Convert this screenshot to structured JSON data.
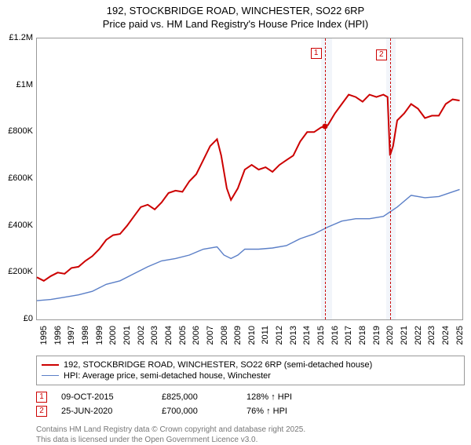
{
  "title_line1": "192, STOCKBRIDGE ROAD, WINCHESTER, SO22 6RP",
  "title_line2": "Price paid vs. HM Land Registry's House Price Index (HPI)",
  "chart": {
    "type": "line",
    "background_color": "#ffffff",
    "grid_color": "#e0e0e0",
    "border_color": "#999999",
    "x_years": [
      1995,
      1996,
      1997,
      1998,
      1999,
      2000,
      2001,
      2002,
      2003,
      2004,
      2005,
      2006,
      2007,
      2008,
      2009,
      2010,
      2011,
      2012,
      2013,
      2014,
      2015,
      2016,
      2017,
      2018,
      2019,
      2020,
      2021,
      2022,
      2023,
      2024,
      2025
    ],
    "xlim": [
      1995,
      2025.7
    ],
    "ylim": [
      0,
      1200000
    ],
    "ytick_step": 200000,
    "yticks": [
      "£0",
      "£200K",
      "£400K",
      "£600K",
      "£800K",
      "£1M",
      "£1.2M"
    ],
    "label_fontsize": 11,
    "highlight_bands": [
      {
        "from": 2015.5,
        "to": 2016.3,
        "color": "#e8ecf5"
      },
      {
        "from": 2020.2,
        "to": 2020.9,
        "color": "#e8ecf5"
      }
    ],
    "vlines": [
      {
        "x": 2015.77,
        "color": "#cc0000",
        "dash": true,
        "label": "1"
      },
      {
        "x": 2020.48,
        "color": "#cc0000",
        "dash": true,
        "label": "2"
      }
    ],
    "series": [
      {
        "name": "price_paid",
        "label": "192, STOCKBRIDGE ROAD, WINCHESTER, SO22 6RP (semi-detached house)",
        "color": "#cc0000",
        "line_width": 2,
        "points": [
          [
            1995,
            180000
          ],
          [
            1995.5,
            165000
          ],
          [
            1996,
            185000
          ],
          [
            1996.5,
            200000
          ],
          [
            1997,
            195000
          ],
          [
            1997.5,
            220000
          ],
          [
            1998,
            225000
          ],
          [
            1998.5,
            250000
          ],
          [
            1999,
            270000
          ],
          [
            1999.5,
            300000
          ],
          [
            2000,
            340000
          ],
          [
            2000.5,
            360000
          ],
          [
            2001,
            365000
          ],
          [
            2001.5,
            400000
          ],
          [
            2002,
            440000
          ],
          [
            2002.5,
            480000
          ],
          [
            2003,
            490000
          ],
          [
            2003.5,
            470000
          ],
          [
            2004,
            500000
          ],
          [
            2004.5,
            540000
          ],
          [
            2005,
            550000
          ],
          [
            2005.5,
            545000
          ],
          [
            2006,
            590000
          ],
          [
            2006.5,
            620000
          ],
          [
            2007,
            680000
          ],
          [
            2007.5,
            740000
          ],
          [
            2008,
            770000
          ],
          [
            2008.3,
            700000
          ],
          [
            2008.7,
            560000
          ],
          [
            2009,
            510000
          ],
          [
            2009.5,
            560000
          ],
          [
            2010,
            640000
          ],
          [
            2010.5,
            660000
          ],
          [
            2011,
            640000
          ],
          [
            2011.5,
            650000
          ],
          [
            2012,
            630000
          ],
          [
            2012.5,
            660000
          ],
          [
            2013,
            680000
          ],
          [
            2013.5,
            700000
          ],
          [
            2014,
            760000
          ],
          [
            2014.5,
            800000
          ],
          [
            2015,
            800000
          ],
          [
            2015.5,
            820000
          ],
          [
            2015.77,
            825000
          ],
          [
            2016,
            830000
          ],
          [
            2016.5,
            880000
          ],
          [
            2017,
            920000
          ],
          [
            2017.5,
            960000
          ],
          [
            2018,
            950000
          ],
          [
            2018.5,
            930000
          ],
          [
            2019,
            960000
          ],
          [
            2019.5,
            950000
          ],
          [
            2020,
            960000
          ],
          [
            2020.3,
            950000
          ],
          [
            2020.48,
            700000
          ],
          [
            2020.7,
            740000
          ],
          [
            2021,
            850000
          ],
          [
            2021.5,
            880000
          ],
          [
            2022,
            920000
          ],
          [
            2022.5,
            900000
          ],
          [
            2023,
            860000
          ],
          [
            2023.5,
            870000
          ],
          [
            2024,
            870000
          ],
          [
            2024.5,
            920000
          ],
          [
            2025,
            940000
          ],
          [
            2025.5,
            935000
          ]
        ]
      },
      {
        "name": "hpi",
        "label": "HPI: Average price, semi-detached house, Winchester",
        "color": "#5b7fc7",
        "line_width": 1.4,
        "points": [
          [
            1995,
            80000
          ],
          [
            1996,
            85000
          ],
          [
            1997,
            95000
          ],
          [
            1998,
            105000
          ],
          [
            1999,
            120000
          ],
          [
            2000,
            150000
          ],
          [
            2001,
            165000
          ],
          [
            2002,
            195000
          ],
          [
            2003,
            225000
          ],
          [
            2004,
            250000
          ],
          [
            2005,
            260000
          ],
          [
            2006,
            275000
          ],
          [
            2007,
            300000
          ],
          [
            2008,
            310000
          ],
          [
            2008.5,
            275000
          ],
          [
            2009,
            260000
          ],
          [
            2009.5,
            275000
          ],
          [
            2010,
            300000
          ],
          [
            2011,
            300000
          ],
          [
            2012,
            305000
          ],
          [
            2013,
            315000
          ],
          [
            2014,
            345000
          ],
          [
            2015,
            365000
          ],
          [
            2016,
            395000
          ],
          [
            2017,
            420000
          ],
          [
            2018,
            430000
          ],
          [
            2019,
            430000
          ],
          [
            2020,
            440000
          ],
          [
            2021,
            480000
          ],
          [
            2022,
            530000
          ],
          [
            2023,
            520000
          ],
          [
            2024,
            525000
          ],
          [
            2025,
            545000
          ],
          [
            2025.5,
            555000
          ]
        ]
      }
    ],
    "sale_markers": [
      {
        "x": 2015.77,
        "y": 825000,
        "color": "#cc0000"
      }
    ]
  },
  "legend": {
    "rows": [
      {
        "color": "#cc0000",
        "width": 2,
        "label": "192, STOCKBRIDGE ROAD, WINCHESTER, SO22 6RP (semi-detached house)"
      },
      {
        "color": "#5b7fc7",
        "width": 1.4,
        "label": "HPI: Average price, semi-detached house, Winchester"
      }
    ]
  },
  "annotations": [
    {
      "num": "1",
      "color": "#cc0000",
      "date": "09-OCT-2015",
      "price": "£825,000",
      "delta": "128% ↑ HPI"
    },
    {
      "num": "2",
      "color": "#cc0000",
      "date": "25-JUN-2020",
      "price": "£700,000",
      "delta": "76% ↑ HPI"
    }
  ],
  "footer": {
    "line1": "Contains HM Land Registry data © Crown copyright and database right 2025.",
    "line2": "This data is licensed under the Open Government Licence v3.0."
  }
}
